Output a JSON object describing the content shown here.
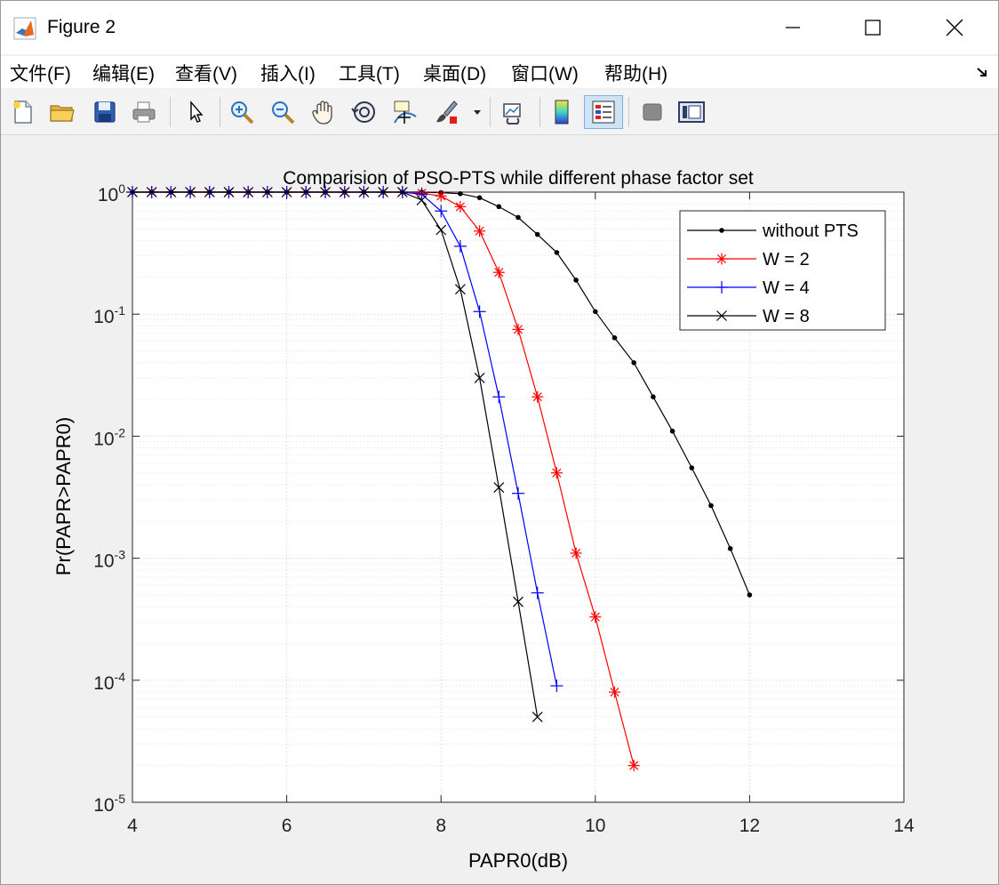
{
  "window": {
    "title": "Figure 2"
  },
  "menu": [
    {
      "label": "文件(F)"
    },
    {
      "label": "编辑(E)"
    },
    {
      "label": "查看(V)"
    },
    {
      "label": "插入(I)"
    },
    {
      "label": "工具(T)"
    },
    {
      "label": "桌面(D)"
    },
    {
      "label": "窗口(W)"
    },
    {
      "label": "帮助(H)"
    }
  ],
  "toolbar": [
    "new-file",
    "open-folder",
    "save",
    "print",
    "pointer",
    "zoom-in",
    "zoom-out",
    "pan-hand",
    "rotate-3d",
    "data-cursor",
    "brush",
    "link-plot",
    "colorbar",
    "legend",
    "hide-plot-tools",
    "show-plot-tools"
  ],
  "chart_data": {
    "type": "line",
    "title": "Comparision of PSO-PTS while different phase factor set",
    "xlabel": "PAPR0(dB)",
    "ylabel": "Pr(PAPR>PAPR0)",
    "xlim": [
      4,
      14
    ],
    "ylim": [
      1e-05,
      1
    ],
    "yscale": "log",
    "grid": true,
    "legend_position": "top-right",
    "x_ticks": [
      "4",
      "6",
      "8",
      "10",
      "12",
      "14"
    ],
    "y_ticks": [
      {
        "base": "10",
        "exp": "0"
      },
      {
        "base": "10",
        "exp": "-1"
      },
      {
        "base": "10",
        "exp": "-2"
      },
      {
        "base": "10",
        "exp": "-3"
      },
      {
        "base": "10",
        "exp": "-4"
      },
      {
        "base": "10",
        "exp": "-5"
      }
    ],
    "series": [
      {
        "name": "without PTS",
        "color": "#000000",
        "marker": "dot",
        "x": [
          4,
          4.25,
          4.5,
          4.75,
          5,
          5.25,
          5.5,
          5.75,
          6,
          6.25,
          6.5,
          6.75,
          7,
          7.25,
          7.5,
          7.75,
          8,
          8.25,
          8.5,
          8.75,
          9,
          9.25,
          9.5,
          9.75,
          10,
          10.25,
          10.5,
          10.75,
          11,
          11.25,
          11.5,
          11.75,
          12
        ],
        "y": [
          1,
          1,
          1,
          1,
          1,
          1,
          1,
          1,
          1,
          1,
          1,
          1,
          1,
          1,
          1,
          1,
          0.99,
          0.97,
          0.9,
          0.76,
          0.62,
          0.45,
          0.32,
          0.19,
          0.105,
          0.064,
          0.04,
          0.021,
          0.011,
          0.0055,
          0.0027,
          0.0012,
          0.0005
        ]
      },
      {
        "name": "W = 2",
        "color": "#ff0000",
        "marker": "star",
        "x": [
          4,
          4.25,
          4.5,
          4.75,
          5,
          5.25,
          5.5,
          5.75,
          6,
          6.25,
          6.5,
          6.75,
          7,
          7.25,
          7.5,
          7.75,
          8,
          8.25,
          8.5,
          8.75,
          9,
          9.25,
          9.5,
          9.75,
          10,
          10.25,
          10.5
        ],
        "y": [
          1,
          1,
          1,
          1,
          1,
          1,
          1,
          1,
          1,
          1,
          1,
          1,
          1,
          1,
          1,
          0.98,
          0.93,
          0.76,
          0.48,
          0.22,
          0.075,
          0.021,
          0.005,
          0.0011,
          0.00033,
          8e-05,
          2e-05
        ]
      },
      {
        "name": "W = 4",
        "color": "#0000ff",
        "marker": "plus",
        "x": [
          4,
          4.25,
          4.5,
          4.75,
          5,
          5.25,
          5.5,
          5.75,
          6,
          6.25,
          6.5,
          6.75,
          7,
          7.25,
          7.5,
          7.75,
          8,
          8.25,
          8.5,
          8.75,
          9,
          9.25,
          9.5
        ],
        "y": [
          1,
          1,
          1,
          1,
          1,
          1,
          1,
          1,
          1,
          1,
          1,
          1,
          1,
          1,
          1,
          0.96,
          0.7,
          0.36,
          0.105,
          0.021,
          0.0034,
          0.00052,
          9e-05
        ]
      },
      {
        "name": "W = 8",
        "color": "#000000",
        "marker": "x",
        "x": [
          4,
          4.25,
          4.5,
          4.75,
          5,
          5.25,
          5.5,
          5.75,
          6,
          6.25,
          6.5,
          6.75,
          7,
          7.25,
          7.5,
          7.75,
          8,
          8.25,
          8.5,
          8.75,
          9,
          9.25
        ],
        "y": [
          1,
          1,
          1,
          1,
          1,
          1,
          1,
          1,
          1,
          1,
          1,
          1,
          1,
          1,
          1,
          0.86,
          0.49,
          0.16,
          0.03,
          0.0038,
          0.00044,
          5e-05
        ]
      }
    ]
  }
}
